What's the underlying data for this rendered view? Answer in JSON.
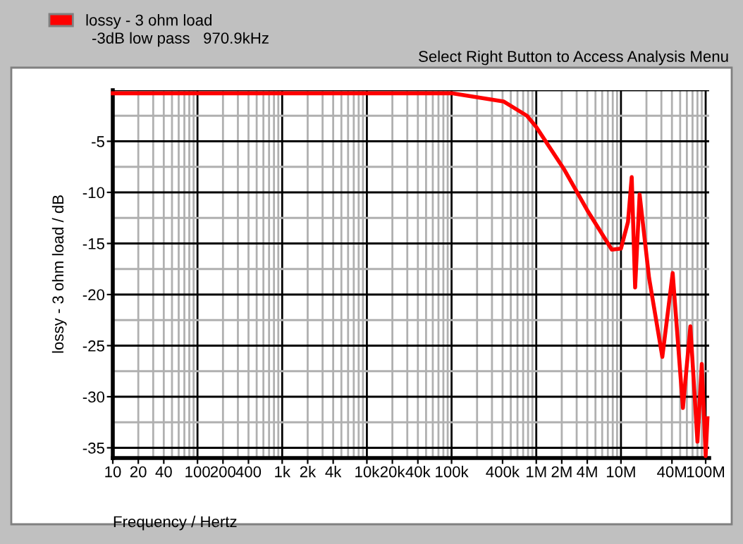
{
  "chart_data": {
    "type": "line",
    "xlabel": "Frequency / Hertz",
    "ylabel": "lossy - 3 ohm load / dB",
    "annotations": [
      "-3dB low pass   970.9kHz",
      "Select Right Button to Access Analysis Menu"
    ],
    "x": [
      10,
      100000,
      410000,
      776000,
      1000000,
      2150000,
      4100000,
      7800000,
      10000000,
      12100000,
      13400000,
      14700000,
      16600000,
      21500000,
      30800000,
      40800000,
      53900000,
      66000000,
      80000000,
      90000000,
      100000000,
      105000000
    ],
    "series": [
      {
        "name": "lossy - 3 ohm load",
        "color": "#ff0000",
        "values": [
          -0.3,
          -0.3,
          -1.1,
          -2.5,
          -3.6,
          -7.8,
          -11.9,
          -15.6,
          -15.5,
          -12.9,
          -8.5,
          -19.3,
          -10.2,
          -18.4,
          -26.1,
          -17.9,
          -31.1,
          -23.1,
          -34.4,
          -26.8,
          -35.8,
          -32.1
        ]
      }
    ],
    "log": "x",
    "xlim": [
      10,
      110000000
    ],
    "ylim": [
      -36,
      0
    ],
    "xticks": [
      10,
      20,
      40,
      {
        "value": 100,
        "label": "100"
      },
      {
        "value": 200,
        "label": "200"
      },
      {
        "value": 400,
        "label": "400"
      },
      {
        "value": 1000,
        "label": "1k"
      },
      {
        "value": 2000,
        "label": "2k"
      },
      {
        "value": 4000,
        "label": "4k"
      },
      {
        "value": 10000,
        "label": "10k"
      },
      {
        "value": 20000,
        "label": "20k"
      },
      {
        "value": 40000,
        "label": "40k"
      },
      {
        "value": 100000,
        "label": "100k"
      },
      {
        "value": 400000,
        "label": "400k"
      },
      {
        "value": 1000000,
        "label": "1M"
      },
      {
        "value": 2000000,
        "label": "2M"
      },
      {
        "value": 4000000,
        "label": "4M"
      },
      {
        "value": 10000000,
        "label": "10M"
      },
      {
        "value": 40000000,
        "label": "40M"
      },
      {
        "value": 100000000,
        "label": "100M"
      }
    ],
    "yticks": [
      -5,
      -10,
      -15,
      -20,
      -25,
      -30,
      -35
    ],
    "grid": true,
    "legend": "top left",
    "line_style": "solid",
    "marker": "none"
  }
}
